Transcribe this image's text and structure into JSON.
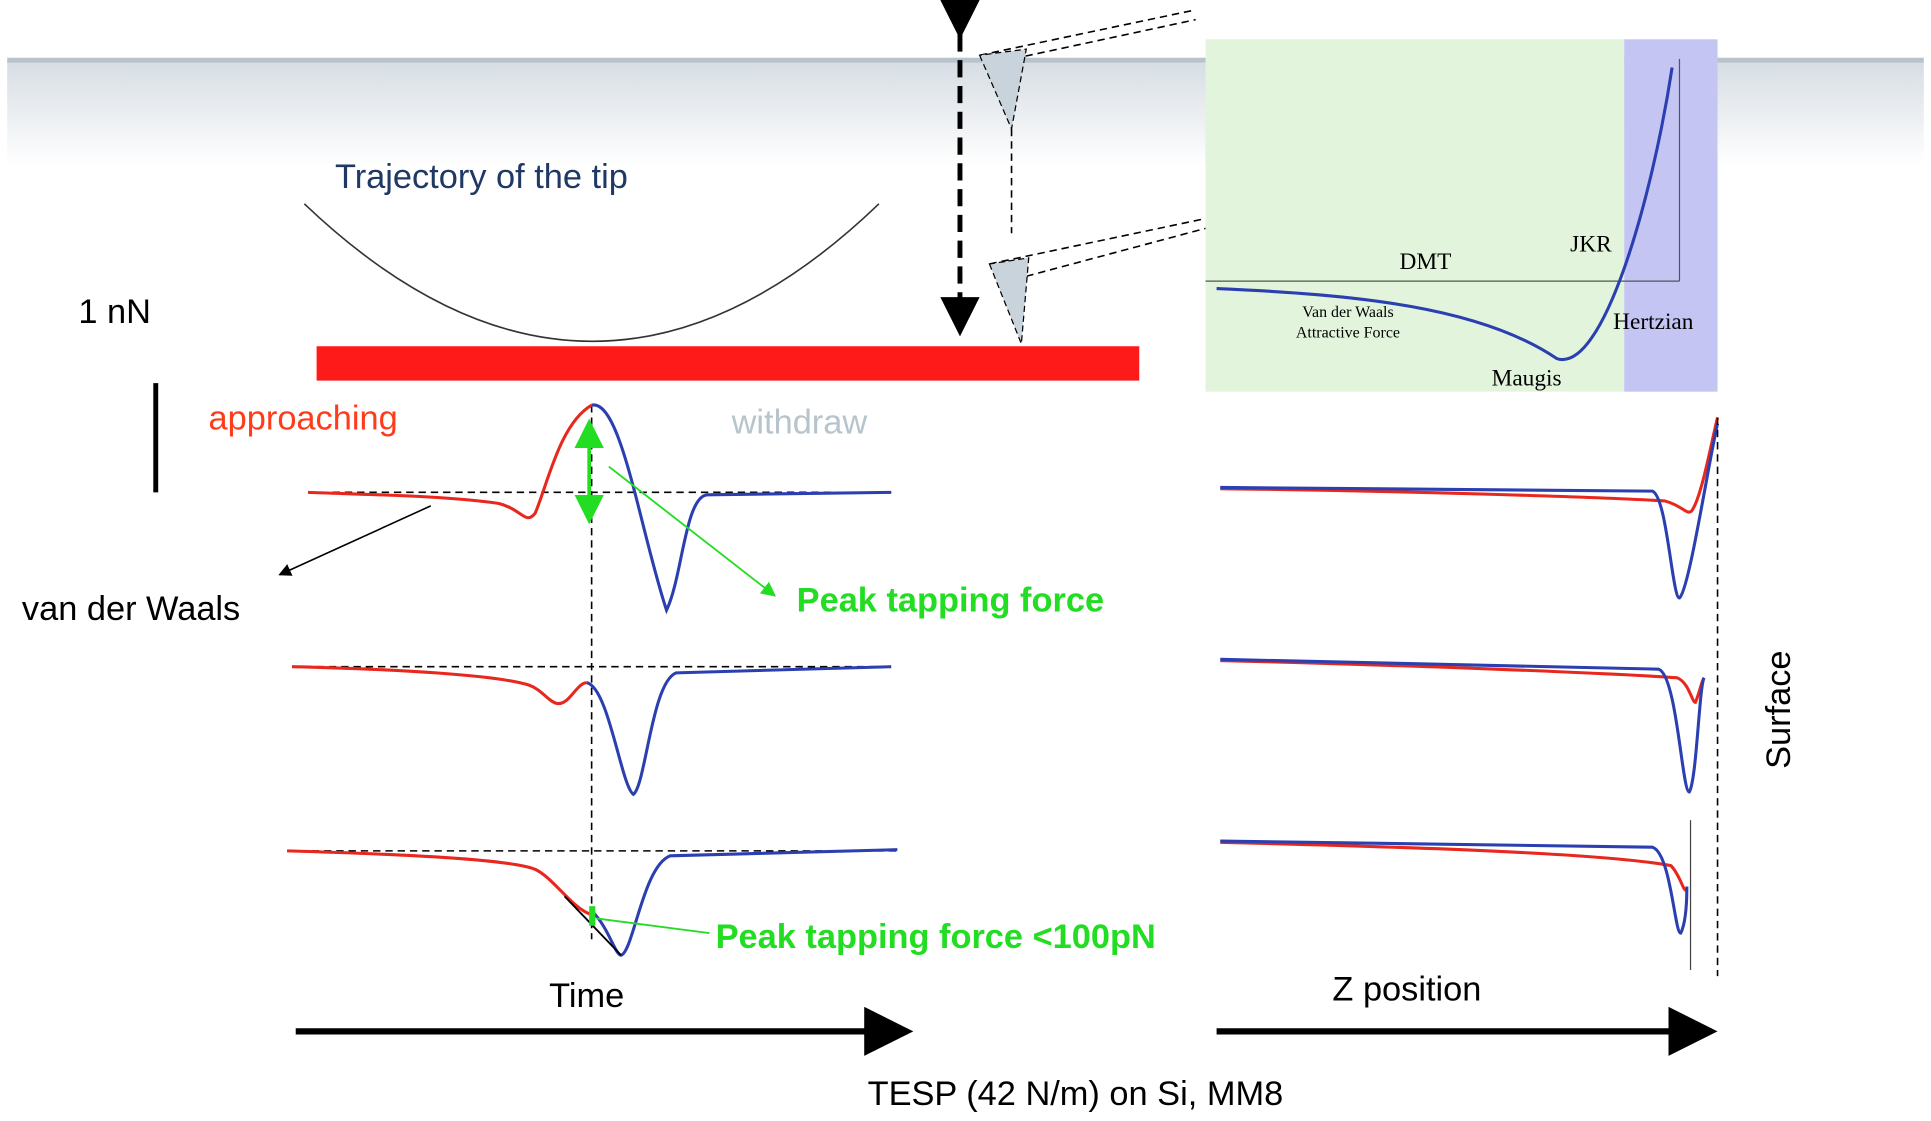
{
  "trajectory_label": "Trajectory of the tip",
  "scale_bar_label": "1 nN",
  "time_panel": {
    "approaching": "approaching",
    "withdraw": "withdraw",
    "van_der_waals": "van der Waals",
    "peak_force": "Peak tapping force",
    "peak_force_low": "Peak tapping force <100pN",
    "axis_label": "Time"
  },
  "z_panel": {
    "axis_label": "Z position",
    "surface": "Surface"
  },
  "inset": {
    "dmt": "DMT",
    "jkr": "JKR",
    "vdw_line1": "Van der Waals",
    "vdw_line2": "Attractive Force",
    "maugis": "Maugis",
    "hertzian": "Hertzian"
  },
  "caption": "TESP (42 N/m) on Si, MM8"
}
